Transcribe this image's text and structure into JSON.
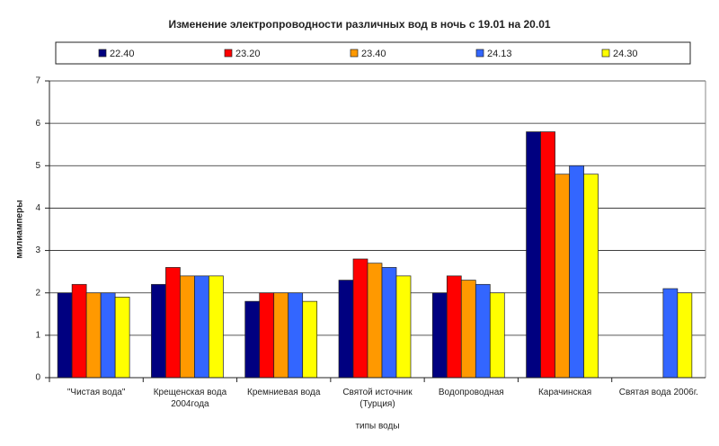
{
  "chart_data": {
    "type": "bar",
    "title": "Изменение электропроводности различных вод в ночь с 19.01 на 20.01",
    "y_label": "милиамперы",
    "x_label": "типы воды",
    "categories": [
      "\"Чистая вода\"",
      "Крещенская вода 2004года",
      "Кремниевая вода",
      "Святой источник (Турция)",
      "Водопроводная",
      "Карачинская",
      "Святая вода 2006г."
    ],
    "series": [
      {
        "name": "22.40",
        "color": "#000080",
        "values": [
          2,
          2.2,
          1.8,
          2.3,
          2,
          5.8,
          null
        ]
      },
      {
        "name": "23.20",
        "color": "#ff0000",
        "values": [
          2.2,
          2.6,
          2,
          2.8,
          2.4,
          5.8,
          null
        ]
      },
      {
        "name": "23.40",
        "color": "#ff9900",
        "values": [
          2,
          2.4,
          2,
          2.7,
          2.3,
          4.8,
          null
        ]
      },
      {
        "name": "24.13",
        "color": "#3366ff",
        "values": [
          2,
          2.4,
          2,
          2.6,
          2.2,
          5,
          2.1
        ]
      },
      {
        "name": "24.30",
        "color": "#ffff00",
        "values": [
          1.9,
          2.4,
          1.8,
          2.4,
          2,
          4.8,
          2
        ]
      }
    ],
    "ylim": [
      0,
      7
    ],
    "yticks": [
      0,
      1,
      2,
      3,
      4,
      5,
      6,
      7
    ],
    "grid": true
  }
}
